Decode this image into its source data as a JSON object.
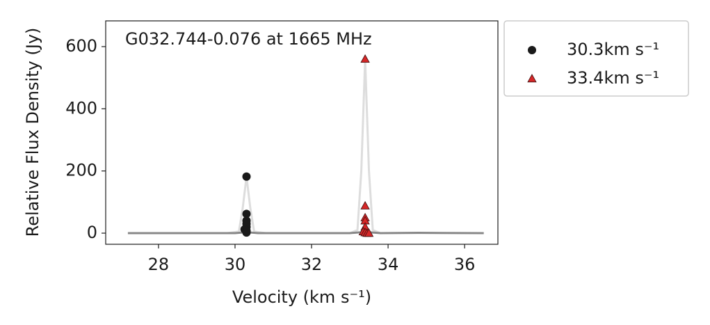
{
  "chart_data": {
    "type": "scatter",
    "annotation": "G032.744-0.076 at 1665 MHz",
    "x_label": "Velocity (km s⁻¹)",
    "y_label": "Relative Flux Density (Jy)",
    "xlim": [
      26.62,
      36.87
    ],
    "ylim": [
      -35.8,
      682.8
    ],
    "xticks": [
      28,
      30,
      32,
      34,
      36
    ],
    "yticks": [
      0,
      200,
      400,
      600
    ],
    "legend": "outside-right",
    "lines": [
      {
        "color": "#dddddd",
        "x": [
          27.2,
          29.8,
          30.1,
          30.2,
          30.3,
          30.4,
          30.5,
          30.8,
          33.0,
          33.2,
          33.3,
          33.4,
          33.5,
          33.6,
          33.8,
          36.5
        ],
        "values": [
          0,
          0,
          5,
          80,
          182,
          80,
          5,
          0,
          0,
          10,
          200,
          560,
          200,
          10,
          0,
          0
        ]
      },
      {
        "color": "#888888",
        "x": [
          27.2,
          30.0,
          30.3,
          30.6,
          33.0,
          33.4,
          33.8,
          34.8,
          36.5
        ],
        "values": [
          0,
          0,
          3,
          0,
          0,
          4,
          0,
          1,
          0
        ]
      }
    ],
    "series": [
      {
        "name": "30.3km s⁻¹",
        "color": "#1a1a1a",
        "marker": "circle",
        "x": [
          30.3,
          30.3,
          30.3,
          30.3,
          30.3,
          30.25,
          30.3,
          30.3,
          30.3
        ],
        "values": [
          182,
          62,
          40,
          30,
          20,
          12,
          8,
          5,
          2
        ]
      },
      {
        "name": "33.4km s⁻¹",
        "color": "#d62728",
        "marker": "triangle",
        "x": [
          33.4,
          33.4,
          33.4,
          33.4,
          33.4,
          33.35,
          33.4,
          33.45,
          33.5
        ],
        "values": [
          560,
          88,
          50,
          40,
          20,
          5,
          2,
          0,
          0
        ]
      }
    ]
  }
}
